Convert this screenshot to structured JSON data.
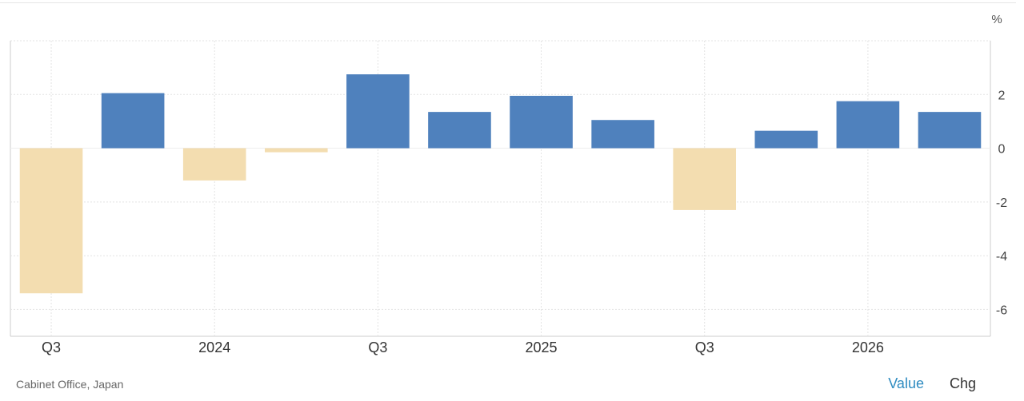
{
  "chart_data": {
    "type": "bar",
    "unit": "%",
    "categories": [
      "Q3",
      "",
      "2024",
      "",
      "Q3",
      "",
      "2025",
      "",
      "Q3",
      "",
      "2026",
      ""
    ],
    "values": [
      -5.4,
      2.05,
      -1.2,
      -0.15,
      2.75,
      1.35,
      1.95,
      1.05,
      -2.3,
      0.65,
      1.75,
      1.35
    ],
    "ylim": [
      -7,
      4
    ],
    "yticks": [
      2,
      0,
      -2,
      -4,
      -6
    ],
    "grid": true,
    "colors": {
      "positive": "#4f81bd",
      "negative": "#f3ddb0",
      "grid": "#e3e3e3",
      "axis": "#cccccc"
    }
  },
  "source": "Cabinet Office, Japan",
  "toggle": {
    "value_label": "Value",
    "chg_label": "Chg"
  }
}
